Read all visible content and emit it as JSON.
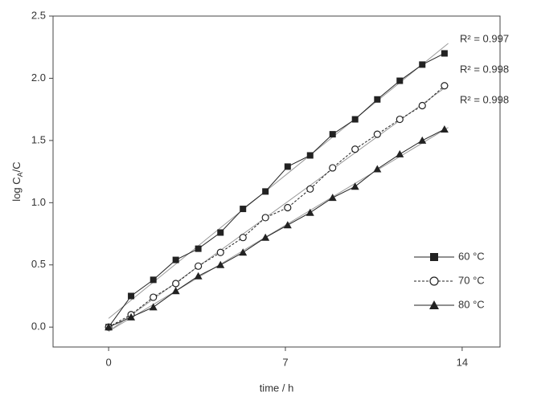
{
  "chart_data": {
    "type": "line",
    "x_label": "time / h",
    "y_label": [
      "log C",
      "A",
      "/C"
    ],
    "x": [
      0,
      0.89,
      1.77,
      2.66,
      3.55,
      4.43,
      5.32,
      6.21,
      7.09,
      7.98,
      8.87,
      9.76,
      10.64,
      11.53,
      12.42,
      13.3
    ],
    "series": [
      {
        "name": "60 °C",
        "color": "#222",
        "marker": "square",
        "line_style": "solid",
        "values": [
          0,
          0.25,
          0.38,
          0.54,
          0.63,
          0.76,
          0.95,
          1.09,
          1.29,
          1.38,
          1.55,
          1.67,
          1.83,
          1.98,
          2.11,
          2.2
        ]
      },
      {
        "name": "70 °C",
        "color": "#222",
        "marker": "circle",
        "line_style": "dashed",
        "values": [
          0,
          0.1,
          0.24,
          0.35,
          0.49,
          0.6,
          0.72,
          0.88,
          0.96,
          1.11,
          1.28,
          1.43,
          1.55,
          1.67,
          1.78,
          1.94
        ]
      },
      {
        "name": "80 °C",
        "color": "#222",
        "marker": "triangle",
        "line_style": "solid",
        "values": [
          0,
          0.08,
          0.16,
          0.29,
          0.41,
          0.5,
          0.6,
          0.72,
          0.82,
          0.92,
          1.04,
          1.13,
          1.27,
          1.39,
          1.5,
          1.59
        ]
      }
    ],
    "annotations": [
      "R² = 0.997",
      "R² = 0.998",
      "R² = 0.998"
    ],
    "xlim": [
      -2.2,
      15.5
    ],
    "ylim": [
      -0.16,
      2.5
    ],
    "xticks": [
      0,
      7,
      14
    ],
    "yticks": [
      {
        "value": 0,
        "label": "0.0"
      },
      0.5,
      {
        "value": 1,
        "label": "1.0"
      },
      1.5,
      {
        "value": 2,
        "label": "2.0"
      },
      2.5
    ],
    "legend": "lower right",
    "grid": false
  }
}
